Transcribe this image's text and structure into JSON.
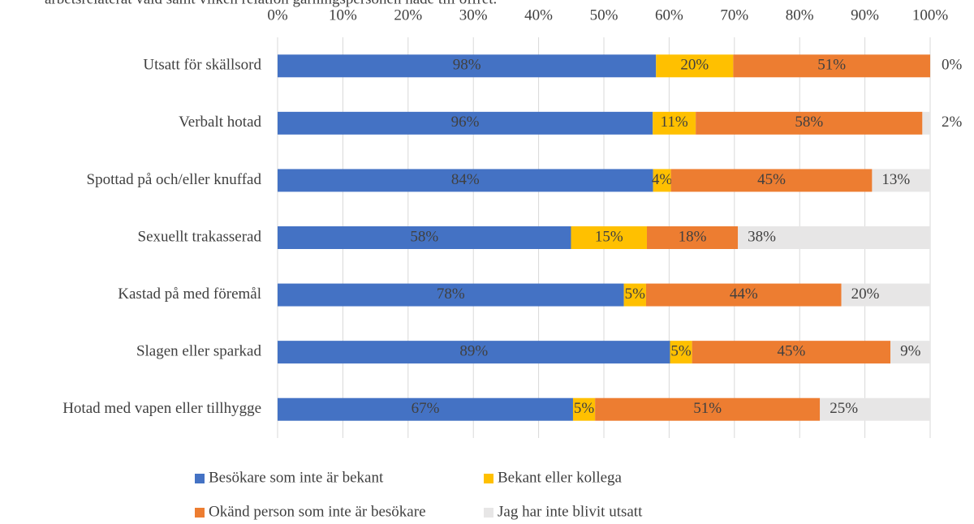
{
  "chart_data": {
    "type": "bar",
    "orientation": "horizontal",
    "stacked": "percent",
    "title": "arbetsrelaterat våld samt vilken relation gärningspersonen hade till offret.",
    "categories": [
      "Utsatt för skällsord",
      "Verbalt hotad",
      "Spottad på och/eller knuffad",
      "Sexuellt trakasserad",
      "Kastad på med föremål",
      "Slagen eller sparkad",
      "Hotad med vapen eller tillhygge"
    ],
    "series": [
      {
        "name": "Besökare som inte är bekant",
        "color": "#4472c4",
        "values": [
          98,
          96,
          84,
          58,
          78,
          89,
          67
        ],
        "value_labels": [
          "98%",
          "96%",
          "84%",
          "58%",
          "78%",
          "89%",
          "67%"
        ]
      },
      {
        "name": "Bekant eller kollega",
        "color": "#ffc000",
        "values": [
          20,
          11,
          4,
          15,
          5,
          5,
          5
        ],
        "value_labels": [
          "20%",
          "11%",
          "4%",
          "15%",
          "5%",
          "5%",
          "5%"
        ]
      },
      {
        "name": "Okänd person som inte är besökare",
        "color": "#ed7d31",
        "values": [
          51,
          58,
          45,
          18,
          44,
          45,
          51
        ],
        "value_labels": [
          "51%",
          "58%",
          "45%",
          "18%",
          "44%",
          "45%",
          "51%"
        ]
      },
      {
        "name": "Jag har inte blivit utsatt",
        "color": "#e7e6e6",
        "values": [
          0,
          2,
          13,
          38,
          20,
          9,
          25
        ],
        "value_labels": [
          "0%",
          "2%",
          "13%",
          "38%",
          "20%",
          "9%",
          "25%"
        ]
      }
    ],
    "xlim": [
      0,
      100
    ],
    "xticks": [
      {
        "value": 0,
        "label": "0%"
      },
      {
        "value": 10,
        "label": "10%"
      },
      {
        "value": 20,
        "label": "20%"
      },
      {
        "value": 30,
        "label": "30%"
      },
      {
        "value": 40,
        "label": "40%"
      },
      {
        "value": 50,
        "label": "50%"
      },
      {
        "value": 60,
        "label": "60%"
      },
      {
        "value": 70,
        "label": "70%"
      },
      {
        "value": 80,
        "label": "80%"
      },
      {
        "value": 90,
        "label": "90%"
      },
      {
        "value": 100,
        "label": "100%"
      }
    ],
    "grid": true,
    "legend": "bottom"
  }
}
